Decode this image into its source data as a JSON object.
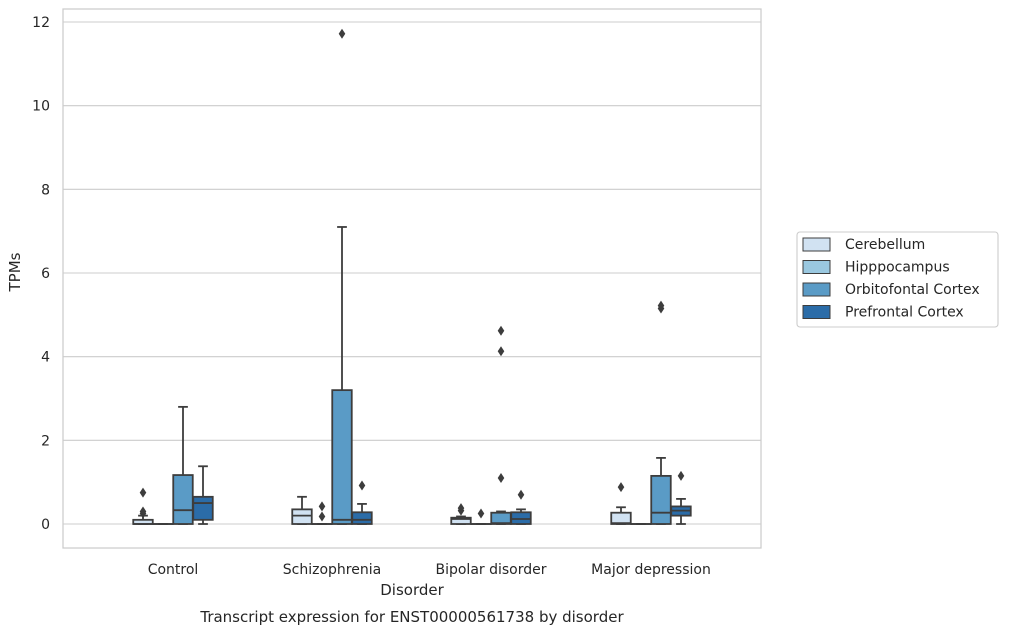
{
  "chart_data": {
    "type": "box",
    "xlabel": "Disorder",
    "ylabel": "TPMs",
    "caption": "Transcript expression for ENST00000561738 by disorder",
    "categories": [
      "Control",
      "Schizophrenia",
      "Bipolar disorder",
      "Major depression"
    ],
    "ylim": [
      -0.55,
      12.35
    ],
    "yticks": [
      0,
      2,
      4,
      6,
      8,
      10,
      12
    ],
    "grid": "horizontal",
    "legend_position": "right",
    "series": [
      {
        "name": "Cerebellum",
        "color": "#d1e2f2",
        "boxes": [
          {
            "whisker_low": 0,
            "q1": 0,
            "median": 0,
            "q3": 0.1,
            "whisker_high": 0.2,
            "outliers": [
              0.25,
              0.3,
              0.75
            ]
          },
          {
            "whisker_low": 0,
            "q1": 0,
            "median": 0.2,
            "q3": 0.35,
            "whisker_high": 0.65,
            "outliers": []
          },
          {
            "whisker_low": 0,
            "q1": 0,
            "median": 0.12,
            "q3": 0.15,
            "whisker_high": 0.18,
            "outliers": [
              0.32,
              0.38
            ]
          },
          {
            "whisker_low": 0,
            "q1": 0,
            "median": 0.02,
            "q3": 0.27,
            "whisker_high": 0.4,
            "outliers": [
              0.88
            ]
          }
        ]
      },
      {
        "name": "Hipppocampus",
        "color": "#9ac8e0",
        "boxes": [
          {
            "whisker_low": 0,
            "q1": 0,
            "median": 0,
            "q3": 0,
            "whisker_high": 0,
            "outliers": []
          },
          {
            "whisker_low": 0,
            "q1": 0,
            "median": 0,
            "q3": 0,
            "whisker_high": 0,
            "outliers": [
              0.18,
              0.42
            ]
          },
          {
            "whisker_low": 0,
            "q1": 0,
            "median": 0,
            "q3": 0,
            "whisker_high": 0,
            "outliers": [
              0.25
            ]
          },
          {
            "whisker_low": 0,
            "q1": 0,
            "median": 0,
            "q3": 0,
            "whisker_high": 0,
            "outliers": []
          }
        ]
      },
      {
        "name": "Orbitofontal Cortex",
        "color": "#5a9bc6",
        "boxes": [
          {
            "whisker_low": 0,
            "q1": 0,
            "median": 0.33,
            "q3": 1.17,
            "whisker_high": 2.8,
            "outliers": []
          },
          {
            "whisker_low": 0,
            "q1": 0,
            "median": 0.1,
            "q3": 3.2,
            "whisker_high": 7.1,
            "outliers": [
              11.72
            ]
          },
          {
            "whisker_low": 0,
            "q1": 0,
            "median": 0.02,
            "q3": 0.27,
            "whisker_high": 0.3,
            "outliers": [
              1.1,
              4.13,
              4.62
            ]
          },
          {
            "whisker_low": 0,
            "q1": 0,
            "median": 0.27,
            "q3": 1.15,
            "whisker_high": 1.58,
            "outliers": [
              5.15,
              5.22
            ]
          }
        ]
      },
      {
        "name": "Prefrontal Cortex",
        "color": "#2b6ca8",
        "boxes": [
          {
            "whisker_low": 0,
            "q1": 0.1,
            "median": 0.5,
            "q3": 0.65,
            "whisker_high": 1.38,
            "outliers": []
          },
          {
            "whisker_low": 0,
            "q1": 0,
            "median": 0.1,
            "q3": 0.28,
            "whisker_high": 0.48,
            "outliers": [
              0.92
            ]
          },
          {
            "whisker_low": 0,
            "q1": 0,
            "median": 0.12,
            "q3": 0.28,
            "whisker_high": 0.35,
            "outliers": [
              0.7
            ]
          },
          {
            "whisker_low": 0,
            "q1": 0.2,
            "median": 0.32,
            "q3": 0.42,
            "whisker_high": 0.6,
            "outliers": [
              1.15
            ]
          }
        ]
      }
    ]
  }
}
